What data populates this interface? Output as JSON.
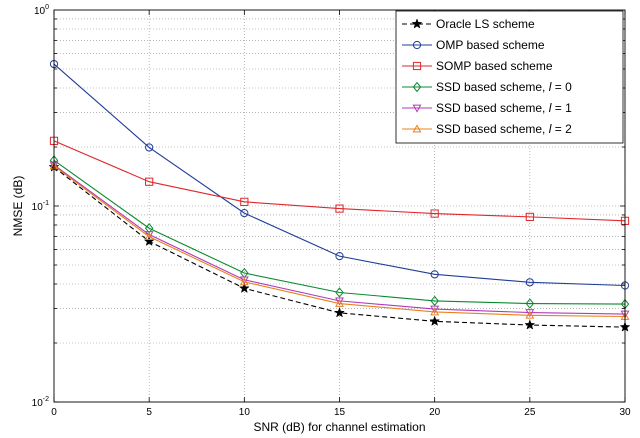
{
  "chart_data": {
    "type": "line",
    "xlabel": "SNR (dB) for channel estimation",
    "ylabel": "NMSE (dB)",
    "xlim": [
      0,
      30
    ],
    "ylim": [
      0.01,
      1
    ],
    "y_scale": "log",
    "grid": true,
    "legend_position": "top-right",
    "x": [
      0,
      5,
      10,
      15,
      20,
      25,
      30
    ],
    "x_ticks": [
      "0",
      "5",
      "10",
      "15",
      "20",
      "25",
      "30"
    ],
    "y_ticks": [
      {
        "value": 0.01,
        "base": "10",
        "exp": "-2"
      },
      {
        "value": 0.1,
        "base": "10",
        "exp": "-1"
      },
      {
        "value": 1,
        "base": "10",
        "exp": "0"
      }
    ],
    "series": [
      {
        "name": "Oracle LS scheme",
        "color": "#000000",
        "marker": "star",
        "dashed": true,
        "values": [
          0.158,
          0.066,
          0.038,
          0.0285,
          0.0258,
          0.0247,
          0.0241
        ]
      },
      {
        "name": "OMP based scheme",
        "color": "#1f3d99",
        "marker": "circle",
        "dashed": false,
        "values": [
          0.53,
          0.199,
          0.092,
          0.0555,
          0.0448,
          0.0408,
          0.0393
        ]
      },
      {
        "name": "SOMP based scheme",
        "color": "#e0262a",
        "marker": "square",
        "dashed": false,
        "values": [
          0.215,
          0.133,
          0.105,
          0.097,
          0.0915,
          0.088,
          0.084
        ]
      },
      {
        "name": "SSD based scheme, ",
        "italic": "l",
        "suffix": " = 0",
        "color": "#0a8a2e",
        "marker": "diamond",
        "dashed": false,
        "values": [
          0.171,
          0.077,
          0.0455,
          0.0362,
          0.0328,
          0.0318,
          0.0316
        ]
      },
      {
        "name": "SSD based scheme, ",
        "italic": "l",
        "suffix": " = 1",
        "color": "#b23bb5",
        "marker": "triangle-down",
        "dashed": false,
        "values": [
          0.162,
          0.0715,
          0.042,
          0.0328,
          0.0298,
          0.0286,
          0.0281
        ]
      },
      {
        "name": "SSD based scheme, ",
        "italic": "l",
        "suffix": " = 2",
        "color": "#e8801e",
        "marker": "triangle-up",
        "dashed": false,
        "values": [
          0.16,
          0.0698,
          0.041,
          0.0318,
          0.0288,
          0.0277,
          0.0273
        ]
      }
    ]
  }
}
